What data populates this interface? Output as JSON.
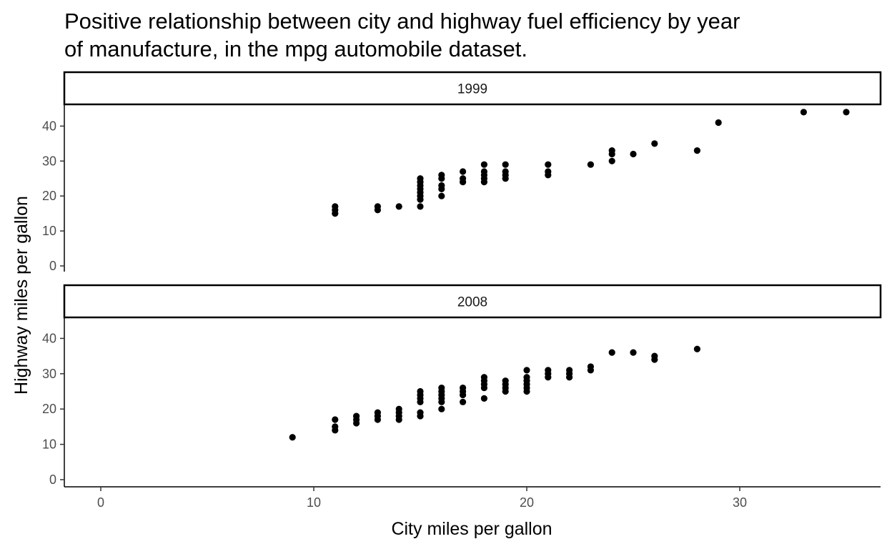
{
  "title_lines": [
    "Positive relationship between city and highway fuel efficiency by year",
    "of manufacture, in the mpg automobile dataset."
  ],
  "chart_data": {
    "type": "scatter",
    "title": "Positive relationship between city and highway fuel efficiency by year of manufacture, in the mpg automobile dataset.",
    "xlabel": "City miles per gallon",
    "ylabel": "Highway miles per gallon",
    "xlim": [
      0,
      35
    ],
    "ylim": [
      0,
      44
    ],
    "x_ticks": [
      0,
      10,
      20,
      30
    ],
    "y_ticks": [
      0,
      10,
      20,
      30,
      40
    ],
    "grid": false,
    "point_color": "#000000",
    "facets": [
      {
        "label": "1999",
        "points": [
          [
            11,
            15
          ],
          [
            11,
            16
          ],
          [
            11,
            17
          ],
          [
            13,
            16
          ],
          [
            13,
            17
          ],
          [
            14,
            17
          ],
          [
            15,
            17
          ],
          [
            15,
            19
          ],
          [
            15,
            20
          ],
          [
            15,
            21
          ],
          [
            15,
            22
          ],
          [
            15,
            23
          ],
          [
            15,
            24
          ],
          [
            15,
            25
          ],
          [
            16,
            20
          ],
          [
            16,
            22
          ],
          [
            16,
            23
          ],
          [
            16,
            25
          ],
          [
            16,
            26
          ],
          [
            17,
            24
          ],
          [
            17,
            25
          ],
          [
            17,
            27
          ],
          [
            18,
            24
          ],
          [
            18,
            25
          ],
          [
            18,
            26
          ],
          [
            18,
            27
          ],
          [
            18,
            29
          ],
          [
            19,
            25
          ],
          [
            19,
            26
          ],
          [
            19,
            27
          ],
          [
            19,
            29
          ],
          [
            21,
            26
          ],
          [
            21,
            27
          ],
          [
            21,
            29
          ],
          [
            23,
            29
          ],
          [
            24,
            30
          ],
          [
            24,
            32
          ],
          [
            24,
            33
          ],
          [
            25,
            32
          ],
          [
            26,
            35
          ],
          [
            28,
            33
          ],
          [
            29,
            41
          ],
          [
            33,
            44
          ],
          [
            35,
            44
          ]
        ]
      },
      {
        "label": "2008",
        "points": [
          [
            9,
            12
          ],
          [
            11,
            14
          ],
          [
            11,
            15
          ],
          [
            11,
            17
          ],
          [
            12,
            16
          ],
          [
            12,
            17
          ],
          [
            12,
            18
          ],
          [
            13,
            17
          ],
          [
            13,
            18
          ],
          [
            13,
            19
          ],
          [
            14,
            17
          ],
          [
            14,
            18
          ],
          [
            14,
            19
          ],
          [
            14,
            20
          ],
          [
            15,
            18
          ],
          [
            15,
            19
          ],
          [
            15,
            22
          ],
          [
            15,
            23
          ],
          [
            15,
            24
          ],
          [
            15,
            25
          ],
          [
            16,
            20
          ],
          [
            16,
            22
          ],
          [
            16,
            23
          ],
          [
            16,
            24
          ],
          [
            16,
            25
          ],
          [
            16,
            26
          ],
          [
            17,
            22
          ],
          [
            17,
            24
          ],
          [
            17,
            25
          ],
          [
            17,
            26
          ],
          [
            18,
            23
          ],
          [
            18,
            26
          ],
          [
            18,
            27
          ],
          [
            18,
            28
          ],
          [
            18,
            29
          ],
          [
            19,
            25
          ],
          [
            19,
            26
          ],
          [
            19,
            27
          ],
          [
            19,
            28
          ],
          [
            20,
            25
          ],
          [
            20,
            26
          ],
          [
            20,
            27
          ],
          [
            20,
            28
          ],
          [
            20,
            29
          ],
          [
            20,
            31
          ],
          [
            21,
            29
          ],
          [
            21,
            30
          ],
          [
            21,
            31
          ],
          [
            22,
            29
          ],
          [
            22,
            30
          ],
          [
            22,
            31
          ],
          [
            23,
            31
          ],
          [
            23,
            32
          ],
          [
            24,
            36
          ],
          [
            25,
            36
          ],
          [
            26,
            34
          ],
          [
            26,
            35
          ],
          [
            28,
            37
          ]
        ]
      }
    ]
  }
}
